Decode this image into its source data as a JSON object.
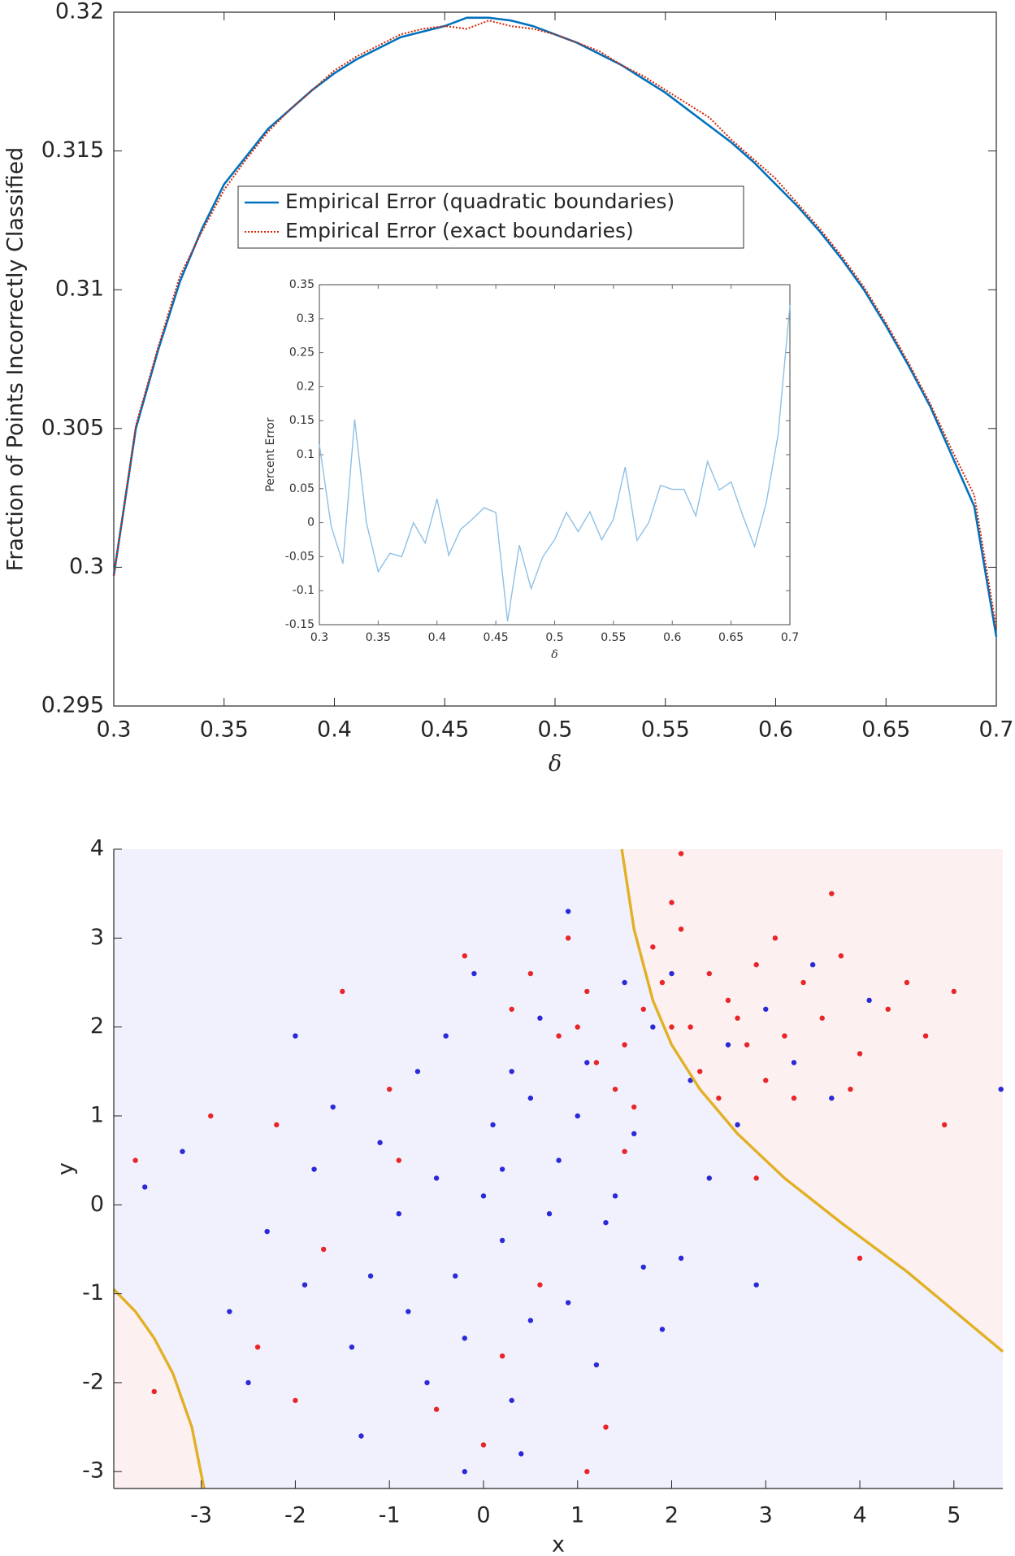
{
  "chart_data": [
    {
      "type": "line",
      "ylabel": "Fraction of Points Incorrectly Classified",
      "xlabel": "δ",
      "xlim": [
        0.3,
        0.7
      ],
      "xticks": [
        0.3,
        0.35,
        0.4,
        0.45,
        0.5,
        0.55,
        0.6,
        0.65,
        0.7
      ],
      "ylim": [
        0.295,
        0.32
      ],
      "yticks": [
        0.295,
        0.3,
        0.305,
        0.31,
        0.315,
        0.32
      ],
      "x": [
        0.3,
        0.31,
        0.32,
        0.33,
        0.34,
        0.35,
        0.36,
        0.37,
        0.38,
        0.39,
        0.4,
        0.41,
        0.42,
        0.43,
        0.44,
        0.45,
        0.46,
        0.47,
        0.48,
        0.49,
        0.5,
        0.51,
        0.52,
        0.53,
        0.54,
        0.55,
        0.56,
        0.57,
        0.58,
        0.59,
        0.6,
        0.61,
        0.62,
        0.63,
        0.64,
        0.65,
        0.66,
        0.67,
        0.68,
        0.69,
        0.7
      ],
      "series": [
        {
          "name": "Empirical Error (quadratic boundaries)",
          "color": "#0072bd",
          "style": "solid",
          "values": [
            0.2997,
            0.305,
            0.3078,
            0.3103,
            0.3122,
            0.3138,
            0.3148,
            0.3158,
            0.3165,
            0.3172,
            0.3178,
            0.3183,
            0.3187,
            0.3191,
            0.3193,
            0.3195,
            0.3198,
            0.3198,
            0.3197,
            0.3195,
            0.3192,
            0.3189,
            0.3185,
            0.3181,
            0.3176,
            0.3171,
            0.3165,
            0.3159,
            0.3153,
            0.3146,
            0.3138,
            0.313,
            0.3121,
            0.3111,
            0.31,
            0.3087,
            0.3073,
            0.3058,
            0.304,
            0.3022,
            0.2975
          ]
        },
        {
          "name": "Empirical Error (exact boundaries)",
          "color": "#d62200",
          "style": "dotted",
          "values": [
            0.2997,
            0.3051,
            0.3079,
            0.3105,
            0.3121,
            0.3136,
            0.3147,
            0.3157,
            0.3165,
            0.3172,
            0.3179,
            0.3184,
            0.3188,
            0.3192,
            0.3194,
            0.3195,
            0.3194,
            0.3197,
            0.3195,
            0.3194,
            0.3192,
            0.3189,
            0.3186,
            0.3181,
            0.3177,
            0.3172,
            0.3167,
            0.3162,
            0.3154,
            0.3147,
            0.314,
            0.3131,
            0.3122,
            0.3112,
            0.3101,
            0.3088,
            0.3074,
            0.3059,
            0.3042,
            0.3026,
            0.2978
          ]
        }
      ]
    },
    {
      "type": "line",
      "ylabel": "Percent Error",
      "xlabel": "δ",
      "xlim": [
        0.3,
        0.7
      ],
      "xticks": [
        0.3,
        0.35,
        0.4,
        0.45,
        0.5,
        0.55,
        0.6,
        0.65,
        0.7
      ],
      "ylim": [
        -0.15,
        0.35
      ],
      "yticks": [
        -0.15,
        -0.1,
        -0.05,
        0,
        0.05,
        0.1,
        0.15,
        0.2,
        0.25,
        0.3,
        0.35
      ],
      "x": [
        0.3,
        0.31,
        0.32,
        0.33,
        0.34,
        0.35,
        0.36,
        0.37,
        0.38,
        0.39,
        0.4,
        0.41,
        0.42,
        0.43,
        0.44,
        0.45,
        0.46,
        0.47,
        0.48,
        0.49,
        0.5,
        0.51,
        0.52,
        0.53,
        0.54,
        0.55,
        0.56,
        0.57,
        0.58,
        0.59,
        0.6,
        0.61,
        0.62,
        0.63,
        0.64,
        0.65,
        0.66,
        0.67,
        0.68,
        0.69,
        0.7
      ],
      "color": "#8ec0e4",
      "values": [
        0.115,
        -0.005,
        -0.06,
        0.152,
        0.0,
        -0.072,
        -0.045,
        -0.05,
        0.0,
        -0.03,
        0.035,
        -0.048,
        -0.01,
        0.005,
        0.022,
        0.015,
        -0.145,
        -0.033,
        -0.097,
        -0.05,
        -0.025,
        0.015,
        -0.013,
        0.016,
        -0.025,
        0.005,
        0.082,
        -0.026,
        0.0,
        0.055,
        0.049,
        0.049,
        0.01,
        0.09,
        0.048,
        0.06,
        0.01,
        -0.035,
        0.03,
        0.13,
        0.32
      ]
    },
    {
      "type": "scatter",
      "xlabel": "x",
      "ylabel": "y",
      "xlim": [
        -3.93,
        5.52
      ],
      "xticks": [
        -3,
        -2,
        -1,
        0,
        1,
        2,
        3,
        4,
        5
      ],
      "ylim": [
        -3.19,
        4
      ],
      "yticks": [
        -3,
        -2,
        -1,
        0,
        1,
        2,
        3,
        4
      ],
      "background": "#f1f1fd",
      "region_color": "#fdf0f0",
      "boundary_color": "#e2b024",
      "boundaries": [
        {
          "x": [
            1.47,
            1.6,
            1.8,
            2.0,
            2.3,
            2.7,
            3.2,
            3.8,
            4.5,
            5.52
          ],
          "y": [
            4.0,
            3.1,
            2.3,
            1.8,
            1.3,
            0.8,
            0.3,
            -0.2,
            -0.75,
            -1.65
          ]
        },
        {
          "x": [
            -3.93,
            -3.7,
            -3.5,
            -3.3,
            -3.1,
            -2.97
          ],
          "y": [
            -0.95,
            -1.2,
            -1.5,
            -1.9,
            -2.5,
            -3.19
          ]
        }
      ],
      "series": [
        {
          "color": "#2a2ad8",
          "x": [
            -0.5,
            0.2,
            0.8,
            -1.2,
            0.5,
            -0.2,
            1.3,
            -1.8,
            0.1,
            0.9,
            -0.7,
            1.6,
            -1.4,
            0.3,
            2.1,
            -2.3,
            0.6,
            -0.9,
            1.1,
            -0.3,
            0.0,
            -1.6,
            2.4,
            0.4,
            -2.7,
            1.8,
            2.6,
            3.0,
            1.5,
            2.2,
            3.3,
            1.2,
            -0.1,
            -2.0,
            2.9,
            0.7,
            -1.1,
            0.2,
            -0.6,
            1.9,
            -3.2,
            3.7,
            0.9,
            -1.3,
            2.0,
            1.4,
            -0.4,
            2.7,
            -2.5,
            0.5,
            4.1,
            1.0,
            -0.8,
            3.5,
            -1.9,
            0.3,
            1.7,
            -0.2,
            5.5,
            -3.6
          ],
          "y": [
            0.3,
            -0.4,
            0.5,
            -0.8,
            1.2,
            -1.5,
            -0.2,
            0.4,
            0.9,
            -1.1,
            1.5,
            0.8,
            -1.6,
            -2.2,
            -0.6,
            -0.3,
            2.1,
            -0.1,
            1.6,
            -0.8,
            0.1,
            1.1,
            0.3,
            -2.8,
            -1.2,
            2.0,
            1.8,
            2.2,
            2.5,
            1.4,
            1.6,
            -1.8,
            2.6,
            1.9,
            -0.9,
            -0.1,
            0.7,
            0.4,
            -2.0,
            -1.4,
            0.6,
            1.2,
            3.3,
            -2.6,
            2.6,
            0.1,
            1.9,
            0.9,
            -2.0,
            -1.3,
            2.3,
            1.0,
            -1.2,
            2.7,
            -0.9,
            1.5,
            -0.7,
            -3.0,
            1.3,
            0.2
          ]
        },
        {
          "color": "#e8262a",
          "x": [
            2.0,
            1.5,
            2.6,
            3.2,
            1.1,
            2.3,
            2.9,
            1.8,
            3.6,
            0.8,
            2.4,
            3.0,
            1.4,
            4.0,
            2.1,
            0.5,
            3.4,
            1.7,
            2.8,
            4.3,
            1.2,
            2.5,
            3.8,
            0.3,
            4.7,
            1.9,
            2.2,
            3.1,
            1.6,
            0.9,
            2.7,
            3.3,
            4.5,
            -0.2,
            1.0,
            5.0,
            2.0,
            3.9,
            -1.0,
            -1.7,
            -0.5,
            0.6,
            -2.2,
            1.3,
            -3.7,
            4.0,
            -3.5,
            2.9,
            -1.5,
            0.2,
            -2.4,
            1.5,
            -0.9,
            2.1,
            4.9,
            3.7,
            -2.0,
            0.0,
            1.1,
            -2.9
          ],
          "y": [
            2.0,
            1.8,
            2.3,
            1.9,
            2.4,
            1.5,
            2.7,
            2.9,
            2.1,
            1.9,
            2.6,
            1.4,
            1.3,
            1.7,
            3.1,
            2.6,
            2.5,
            2.2,
            1.8,
            2.2,
            1.6,
            1.2,
            2.8,
            2.2,
            1.9,
            2.5,
            2.0,
            3.0,
            1.1,
            3.0,
            2.1,
            1.2,
            2.5,
            2.8,
            2.0,
            2.4,
            3.4,
            1.3,
            1.3,
            -0.5,
            -2.3,
            -0.9,
            0.9,
            -2.5,
            0.5,
            -0.6,
            -2.1,
            0.3,
            2.4,
            -1.7,
            -1.6,
            0.6,
            0.5,
            3.95,
            0.9,
            3.5,
            -2.2,
            -2.7,
            -3.0,
            1.0
          ]
        }
      ]
    }
  ]
}
